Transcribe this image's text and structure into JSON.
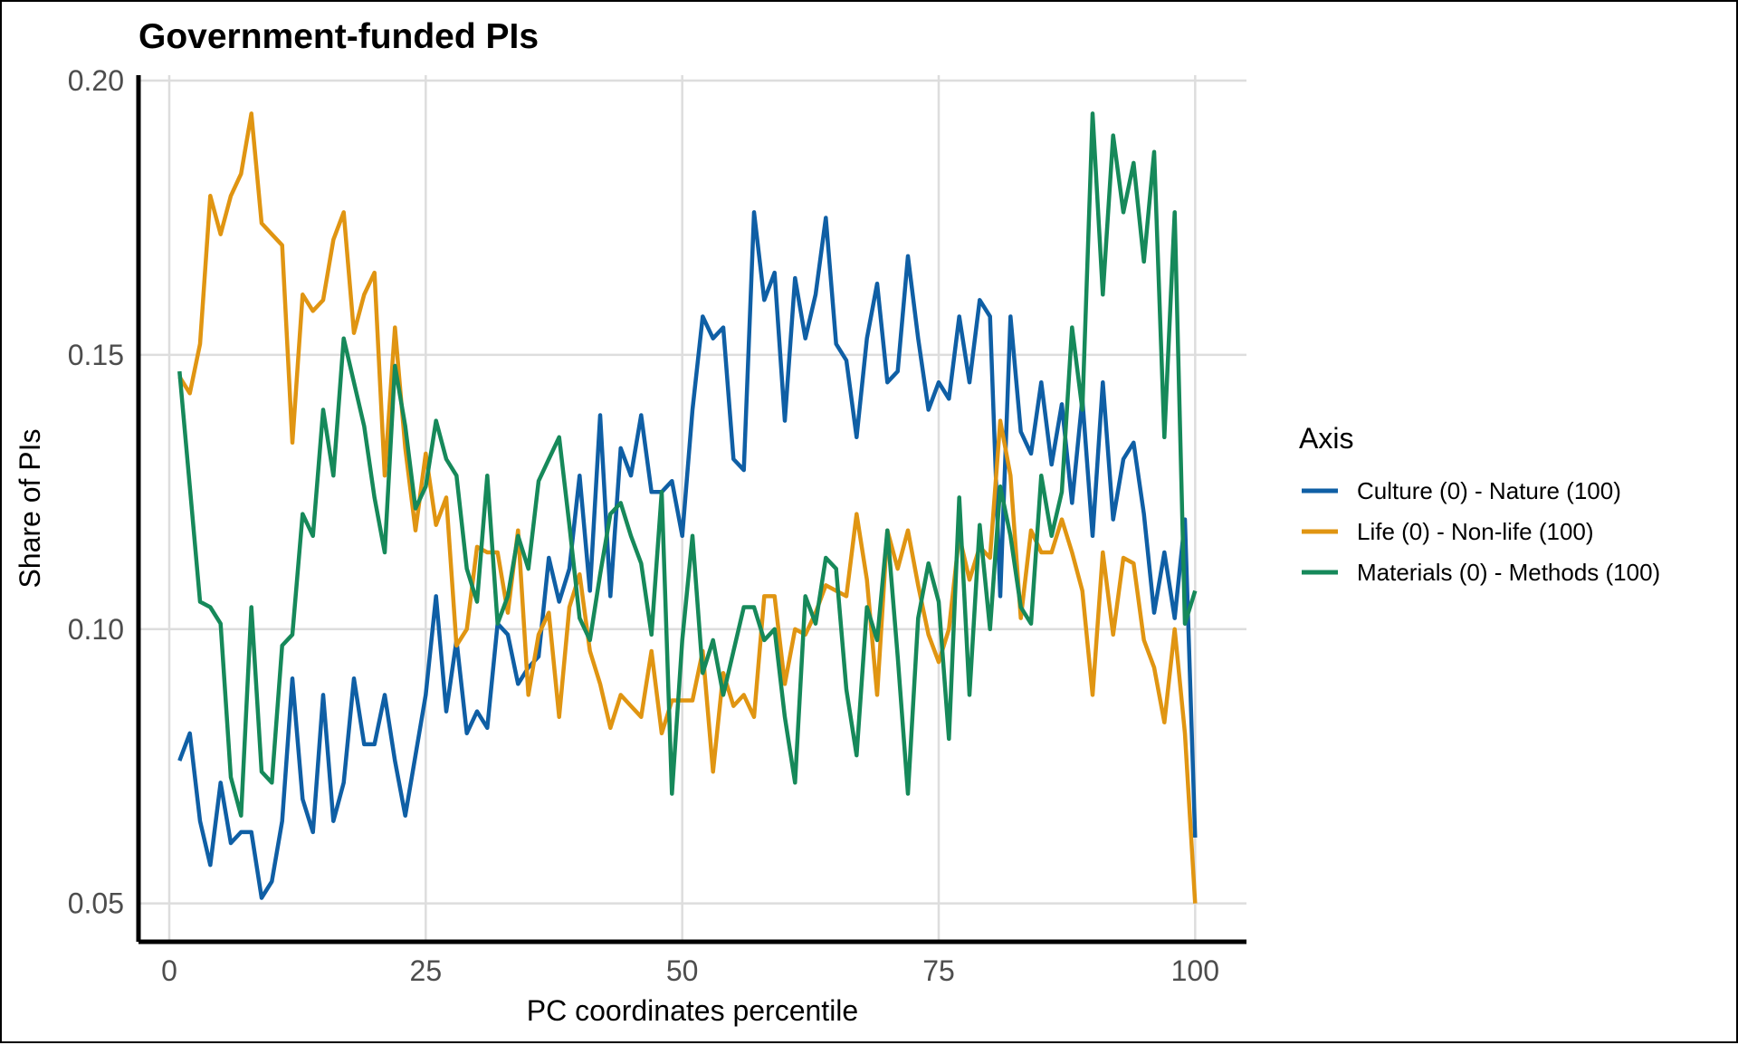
{
  "chart_data": {
    "type": "line",
    "title": "Government-funded PIs",
    "xlabel": "PC coordinates percentile",
    "ylabel": "Share of PIs",
    "xlim": [
      -3,
      105
    ],
    "ylim": [
      0.043,
      0.201
    ],
    "xticks": [
      0,
      25,
      50,
      75,
      100
    ],
    "xtick_labels": [
      "0",
      "25",
      "50",
      "75",
      "100"
    ],
    "yticks": [
      0.05,
      0.1,
      0.15,
      0.2
    ],
    "ytick_labels": [
      "0.05",
      "0.10",
      "0.15",
      "0.20"
    ],
    "grid": true,
    "legend": {
      "title": "Axis",
      "position": "right"
    },
    "x": [
      1,
      2,
      3,
      4,
      5,
      6,
      7,
      8,
      9,
      10,
      11,
      12,
      13,
      14,
      15,
      16,
      17,
      18,
      19,
      20,
      21,
      22,
      23,
      24,
      25,
      26,
      27,
      28,
      29,
      30,
      31,
      32,
      33,
      34,
      35,
      36,
      37,
      38,
      39,
      40,
      41,
      42,
      43,
      44,
      45,
      46,
      47,
      48,
      49,
      50,
      51,
      52,
      53,
      54,
      55,
      56,
      57,
      58,
      59,
      60,
      61,
      62,
      63,
      64,
      65,
      66,
      67,
      68,
      69,
      70,
      71,
      72,
      73,
      74,
      75,
      76,
      77,
      78,
      79,
      80,
      81,
      82,
      83,
      84,
      85,
      86,
      87,
      88,
      89,
      90,
      91,
      92,
      93,
      94,
      95,
      96,
      97,
      98,
      99,
      100
    ],
    "series": [
      {
        "name": "Culture (0) - Nature (100)",
        "color": "#0f5fa5",
        "values": [
          0.076,
          0.081,
          0.065,
          0.057,
          0.072,
          0.061,
          0.063,
          0.063,
          0.051,
          0.054,
          0.065,
          0.091,
          0.069,
          0.063,
          0.088,
          0.065,
          0.072,
          0.091,
          0.079,
          0.079,
          0.088,
          0.076,
          0.066,
          0.077,
          0.088,
          0.106,
          0.085,
          0.098,
          0.081,
          0.085,
          0.082,
          0.101,
          0.099,
          0.09,
          0.093,
          0.095,
          0.113,
          0.105,
          0.111,
          0.128,
          0.107,
          0.139,
          0.106,
          0.133,
          0.128,
          0.139,
          0.125,
          0.125,
          0.127,
          0.117,
          0.14,
          0.157,
          0.153,
          0.155,
          0.131,
          0.129,
          0.176,
          0.16,
          0.165,
          0.138,
          0.164,
          0.153,
          0.161,
          0.175,
          0.152,
          0.149,
          0.135,
          0.153,
          0.163,
          0.145,
          0.147,
          0.168,
          0.153,
          0.14,
          0.145,
          0.142,
          0.157,
          0.145,
          0.16,
          0.157,
          0.106,
          0.157,
          0.136,
          0.132,
          0.145,
          0.13,
          0.141,
          0.123,
          0.142,
          0.117,
          0.145,
          0.12,
          0.131,
          0.134,
          0.121,
          0.103,
          0.114,
          0.102,
          0.12,
          0.062
        ]
      },
      {
        "name": "Life (0) - Non-life (100)",
        "color": "#e09512",
        "values": [
          0.146,
          0.143,
          0.152,
          0.179,
          0.172,
          0.179,
          0.183,
          0.194,
          0.174,
          0.172,
          0.17,
          0.134,
          0.161,
          0.158,
          0.16,
          0.171,
          0.176,
          0.154,
          0.161,
          0.165,
          0.128,
          0.155,
          0.133,
          0.118,
          0.132,
          0.119,
          0.124,
          0.097,
          0.1,
          0.115,
          0.114,
          0.114,
          0.103,
          0.118,
          0.088,
          0.099,
          0.103,
          0.084,
          0.104,
          0.11,
          0.096,
          0.09,
          0.082,
          0.088,
          0.086,
          0.084,
          0.096,
          0.081,
          0.087,
          0.087,
          0.087,
          0.096,
          0.074,
          0.092,
          0.086,
          0.088,
          0.084,
          0.106,
          0.106,
          0.09,
          0.1,
          0.099,
          0.103,
          0.108,
          0.107,
          0.106,
          0.121,
          0.109,
          0.088,
          0.118,
          0.111,
          0.118,
          0.108,
          0.099,
          0.094,
          0.1,
          0.117,
          0.109,
          0.115,
          0.113,
          0.138,
          0.128,
          0.102,
          0.118,
          0.114,
          0.114,
          0.12,
          0.114,
          0.107,
          0.088,
          0.114,
          0.099,
          0.113,
          0.112,
          0.098,
          0.093,
          0.083,
          0.1,
          0.081,
          0.05
        ]
      },
      {
        "name": "Materials (0) - Methods (100)",
        "color": "#16895a",
        "values": [
          0.147,
          0.126,
          0.105,
          0.104,
          0.101,
          0.073,
          0.066,
          0.104,
          0.074,
          0.072,
          0.097,
          0.099,
          0.121,
          0.117,
          0.14,
          0.128,
          0.153,
          0.145,
          0.137,
          0.124,
          0.114,
          0.148,
          0.137,
          0.122,
          0.126,
          0.138,
          0.131,
          0.128,
          0.111,
          0.105,
          0.128,
          0.101,
          0.106,
          0.117,
          0.111,
          0.127,
          0.131,
          0.135,
          0.119,
          0.102,
          0.098,
          0.11,
          0.121,
          0.123,
          0.117,
          0.112,
          0.099,
          0.125,
          0.07,
          0.098,
          0.117,
          0.092,
          0.098,
          0.088,
          0.096,
          0.104,
          0.104,
          0.098,
          0.1,
          0.084,
          0.072,
          0.106,
          0.101,
          0.113,
          0.111,
          0.089,
          0.077,
          0.104,
          0.098,
          0.118,
          0.095,
          0.07,
          0.102,
          0.112,
          0.105,
          0.08,
          0.124,
          0.088,
          0.119,
          0.1,
          0.126,
          0.117,
          0.104,
          0.101,
          0.128,
          0.117,
          0.125,
          0.155,
          0.14,
          0.194,
          0.161,
          0.19,
          0.176,
          0.185,
          0.167,
          0.187,
          0.135,
          0.176,
          0.101,
          0.107
        ]
      }
    ]
  }
}
